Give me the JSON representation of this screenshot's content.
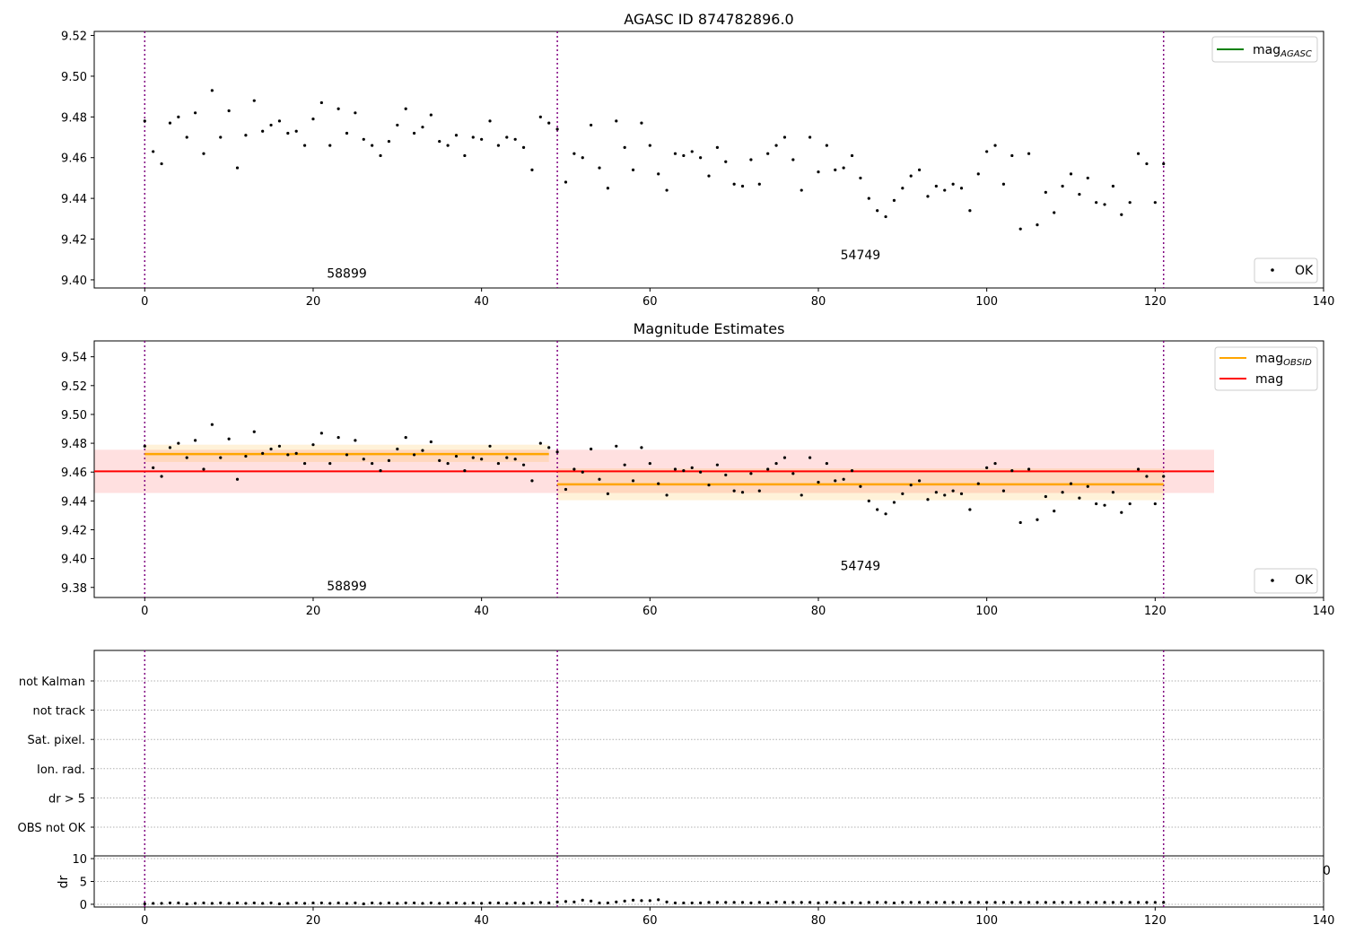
{
  "chart_data": [
    {
      "id": "top",
      "type": "scatter",
      "title": "AGASC ID 874782896.0",
      "xlim": [
        -6,
        140
      ],
      "ylim": [
        9.396,
        9.522
      ],
      "xticks": [
        "0",
        "20",
        "40",
        "60",
        "80",
        "100",
        "120",
        "140"
      ],
      "xtick_values": [
        0,
        20,
        40,
        60,
        80,
        100,
        120,
        140
      ],
      "yticks": [
        "9.40",
        "9.42",
        "9.44",
        "9.46",
        "9.48",
        "9.50",
        "9.52"
      ],
      "ytick_values": [
        9.4,
        9.42,
        9.44,
        9.46,
        9.48,
        9.5,
        9.52
      ],
      "vlines": [
        0,
        49,
        121
      ],
      "annotations": [
        {
          "text": "58899",
          "x": 24,
          "y": 9.401
        },
        {
          "text": "54749",
          "x": 85,
          "y": 9.41
        }
      ],
      "legend_upper": {
        "label": "mag",
        "sub": "AGASC",
        "color": "#008000"
      },
      "legend_lower": {
        "label": "OK"
      }
    },
    {
      "id": "mid",
      "type": "scatter",
      "title": "Magnitude Estimates",
      "xlim": [
        -6,
        140
      ],
      "ylim": [
        9.373,
        9.551
      ],
      "xticks": [
        "0",
        "20",
        "40",
        "60",
        "80",
        "100",
        "120",
        "140"
      ],
      "xtick_values": [
        0,
        20,
        40,
        60,
        80,
        100,
        120,
        140
      ],
      "yticks": [
        "9.38",
        "9.40",
        "9.42",
        "9.44",
        "9.46",
        "9.48",
        "9.50",
        "9.52",
        "9.54"
      ],
      "ytick_values": [
        9.38,
        9.4,
        9.42,
        9.44,
        9.46,
        9.48,
        9.5,
        9.52,
        9.54
      ],
      "vlines": [
        0,
        49,
        121
      ],
      "mag_line": {
        "y": 9.4605,
        "band": [
          9.4455,
          9.4755
        ],
        "x": [
          -6,
          127
        ],
        "color": "#ff0000"
      },
      "obsid_segments": [
        {
          "x": [
            0,
            48
          ],
          "y": 9.4725,
          "band": [
            9.467,
            9.479
          ]
        },
        {
          "x": [
            49,
            121
          ],
          "y": 9.4515,
          "band": [
            9.4405,
            9.4625
          ]
        }
      ],
      "annotations": [
        {
          "text": "58899",
          "x": 24,
          "y": 9.378
        },
        {
          "text": "54749",
          "x": 85,
          "y": 9.392
        }
      ],
      "legend_upper": [
        {
          "label": "mag",
          "sub": "OBSID",
          "color": "#ffa500"
        },
        {
          "label": "mag",
          "sub": "",
          "color": "#ff0000"
        }
      ],
      "legend_lower": {
        "label": "OK"
      }
    },
    {
      "id": "flags",
      "type": "scatter",
      "xlim": [
        -6,
        140
      ],
      "categories": [
        "not Kalman",
        "not track",
        "Sat. pixel.",
        "Ion. rad.",
        "dr > 5",
        "OBS not OK"
      ],
      "vlines": [
        0,
        49,
        121
      ]
    },
    {
      "id": "dr",
      "type": "scatter",
      "ylabel": "dr",
      "xlim": [
        -6,
        140
      ],
      "ylim": [
        -0.6,
        10.6
      ],
      "xticks": [
        "0",
        "20",
        "40",
        "60",
        "80",
        "100",
        "120",
        "140"
      ],
      "xtick_values": [
        0,
        20,
        40,
        60,
        80,
        100,
        120,
        140
      ],
      "yticks": [
        "0",
        "5",
        "10"
      ],
      "ytick_values": [
        0,
        5,
        10
      ],
      "vlines": [
        0,
        49,
        121
      ],
      "stray_label": "0",
      "values": [
        0.1,
        0.2,
        0.2,
        0.3,
        0.3,
        0.1,
        0.2,
        0.3,
        0.2,
        0.3,
        0.2,
        0.3,
        0.2,
        0.3,
        0.2,
        0.3,
        0.1,
        0.2,
        0.3,
        0.2,
        0.3,
        0.3,
        0.2,
        0.3,
        0.2,
        0.3,
        0.1,
        0.3,
        0.2,
        0.3,
        0.2,
        0.3,
        0.3,
        0.2,
        0.3,
        0.2,
        0.3,
        0.3,
        0.2,
        0.3,
        0.2,
        0.3,
        0.3,
        0.2,
        0.3,
        0.2,
        0.3,
        0.4,
        0.3,
        0.5,
        0.6,
        0.5,
        0.9,
        0.7,
        0.3,
        0.3,
        0.5,
        0.7,
        0.9,
        0.8,
        0.8,
        1.0,
        0.5,
        0.3,
        0.3,
        0.3,
        0.3,
        0.4,
        0.4,
        0.4,
        0.4,
        0.4,
        0.3,
        0.4,
        0.3,
        0.5,
        0.4,
        0.4,
        0.4,
        0.4,
        0.3,
        0.4,
        0.4,
        0.3,
        0.4,
        0.3,
        0.4,
        0.4,
        0.4,
        0.3,
        0.4,
        0.4,
        0.4,
        0.4,
        0.4,
        0.4,
        0.4,
        0.4,
        0.4,
        0.4,
        0.4,
        0.4,
        0.4,
        0.4,
        0.4,
        0.4,
        0.4,
        0.4,
        0.4,
        0.4,
        0.4,
        0.4,
        0.4,
        0.4,
        0.4,
        0.4,
        0.4,
        0.4,
        0.4,
        0.4,
        0.4,
        0.4
      ]
    }
  ],
  "mag_series": [
    9.478,
    9.463,
    9.457,
    9.477,
    9.48,
    9.47,
    9.482,
    9.462,
    9.493,
    9.47,
    9.483,
    9.455,
    9.471,
    9.488,
    9.473,
    9.476,
    9.478,
    9.472,
    9.473,
    9.466,
    9.479,
    9.487,
    9.466,
    9.484,
    9.472,
    9.482,
    9.469,
    9.466,
    9.461,
    9.468,
    9.476,
    9.484,
    9.472,
    9.475,
    9.481,
    9.468,
    9.466,
    9.471,
    9.461,
    9.47,
    9.469,
    9.478,
    9.466,
    9.47,
    9.469,
    9.465,
    9.454,
    9.48,
    9.477,
    9.474,
    9.448,
    9.462,
    9.46,
    9.476,
    9.455,
    9.445,
    9.478,
    9.465,
    9.454,
    9.477,
    9.466,
    9.452,
    9.444,
    9.462,
    9.461,
    9.463,
    9.46,
    9.451,
    9.465,
    9.458,
    9.447,
    9.446,
    9.459,
    9.447,
    9.462,
    9.466,
    9.47,
    9.459,
    9.444,
    9.47,
    9.453,
    9.466,
    9.454,
    9.455,
    9.461,
    9.45,
    9.44,
    9.434,
    9.431,
    9.439,
    9.445,
    9.451,
    9.454,
    9.441,
    9.446,
    9.444,
    9.447,
    9.445,
    9.434,
    9.452,
    9.463,
    9.466,
    9.447,
    9.461,
    9.425,
    9.462,
    9.427,
    9.443,
    9.433,
    9.446,
    9.452,
    9.442,
    9.45,
    9.438,
    9.437,
    9.446,
    9.432,
    9.438,
    9.462,
    9.457,
    9.438,
    9.457
  ]
}
